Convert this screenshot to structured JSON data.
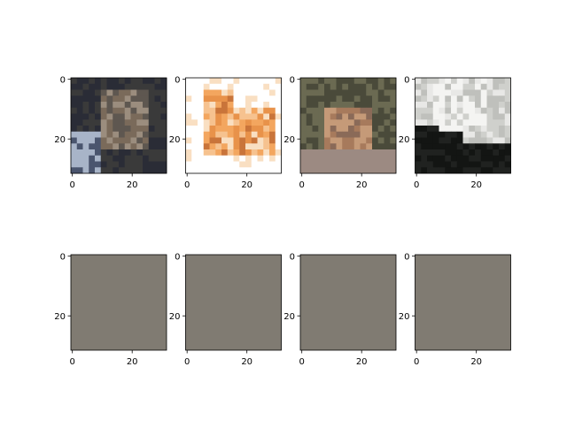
{
  "chart_data": {
    "type": "image-grid",
    "rows": 2,
    "cols": 4,
    "image_extent": [
      -0.5,
      31.5
    ],
    "xticks": [
      0,
      20
    ],
    "yticks": [
      0,
      20
    ],
    "axes": [
      {
        "row": 0,
        "content": "frog",
        "palette": [
          "#3a3a3a",
          "#7a6a5a",
          "#9b8d7e",
          "#5e5750",
          "#2a2c36",
          "#a8b4c8",
          "#4a556e"
        ]
      },
      {
        "row": 0,
        "content": "cat",
        "palette": [
          "#ffffff",
          "#f3a65f",
          "#e8924a",
          "#f6c28f",
          "#c9743a",
          "#f9dfc2"
        ]
      },
      {
        "row": 0,
        "content": "deer",
        "palette": [
          "#4a4a3a",
          "#6b6a52",
          "#c59a78",
          "#a77a5c",
          "#8a6a58",
          "#5d4e44",
          "#9c8a82"
        ]
      },
      {
        "row": 0,
        "content": "white dog",
        "palette": [
          "#cfd0cc",
          "#e8e8e6",
          "#bfc0bc",
          "#202220",
          "#131513",
          "#f4f4f2",
          "#9a9996"
        ]
      },
      {
        "row": 1,
        "content": "grey",
        "fill": "#807b72"
      },
      {
        "row": 1,
        "content": "grey",
        "fill": "#807b72"
      },
      {
        "row": 1,
        "content": "grey",
        "fill": "#807b72"
      },
      {
        "row": 1,
        "content": "grey",
        "fill": "#807b72"
      }
    ]
  }
}
